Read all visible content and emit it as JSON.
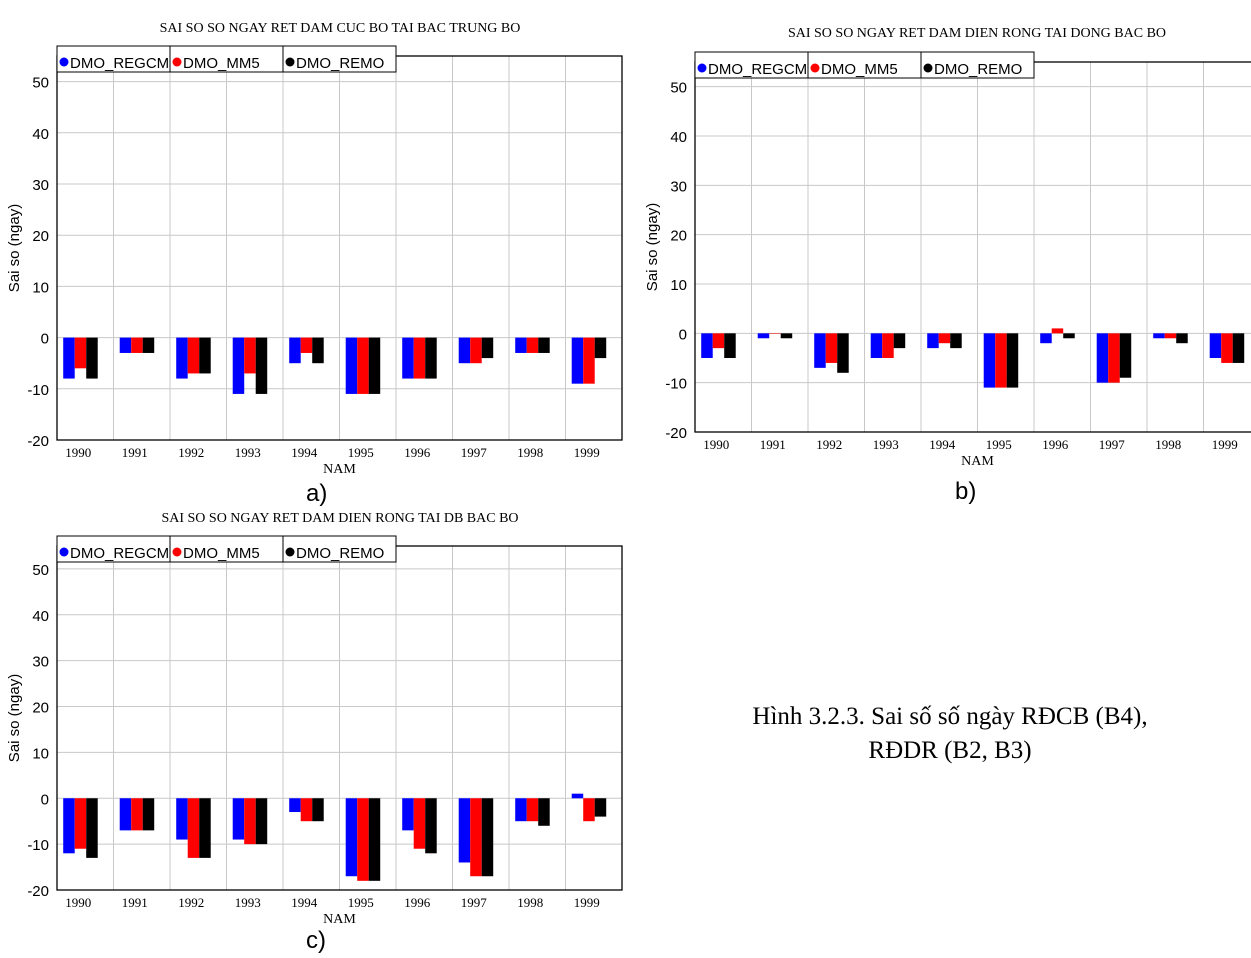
{
  "chart_data": [
    {
      "type": "bar",
      "title": "SAI SO SO NGAY RET DAM CUC BO TAI BAC TRUNG BO",
      "xlabel": "NAM",
      "ylabel": "Sai so  (ngay)",
      "ylim": [
        -20,
        55
      ],
      "yticks": [
        -20,
        -10,
        0,
        10,
        20,
        30,
        40,
        50
      ],
      "grid": true,
      "legend_position": "top-left",
      "categories": [
        "1990",
        "1991",
        "1992",
        "1993",
        "1994",
        "1995",
        "1996",
        "1997",
        "1998",
        "1999"
      ],
      "series": [
        {
          "name": "DMO_REGCM",
          "color": "#0000ff",
          "values": [
            -8,
            -3,
            -8,
            -11,
            -5,
            -11,
            -8,
            -5,
            -3,
            -9
          ]
        },
        {
          "name": "DMO_MM5",
          "color": "#ff0000",
          "values": [
            -6,
            -3,
            -7,
            -7,
            -3,
            -11,
            -8,
            -5,
            -3,
            -9
          ]
        },
        {
          "name": "DMO_REMO",
          "color": "#000000",
          "values": [
            -8,
            -3,
            -7,
            -11,
            -5,
            -11,
            -8,
            -4,
            -3,
            -4
          ]
        }
      ],
      "panel_label": "a)"
    },
    {
      "type": "bar",
      "title": "SAI SO SO NGAY RET DAM DIEN RONG TAI DONG BAC BO",
      "xlabel": "NAM",
      "ylabel": "Sai so  (ngay)",
      "ylim": [
        -20,
        55
      ],
      "yticks": [
        -20,
        -10,
        0,
        10,
        20,
        30,
        40,
        50
      ],
      "grid": true,
      "legend_position": "top-left",
      "categories": [
        "1990",
        "1991",
        "1992",
        "1993",
        "1994",
        "1995",
        "1996",
        "1997",
        "1998",
        "1999"
      ],
      "series": [
        {
          "name": "DMO_REGCM",
          "color": "#0000ff",
          "values": [
            -5,
            -1,
            -7,
            -5,
            -3,
            -11,
            -2,
            -10,
            -1,
            -5
          ]
        },
        {
          "name": "DMO_MM5",
          "color": "#ff0000",
          "values": [
            -3,
            0,
            -6,
            -5,
            -2,
            -11,
            1,
            -10,
            -1,
            -6
          ]
        },
        {
          "name": "DMO_REMO",
          "color": "#000000",
          "values": [
            -5,
            -1,
            -8,
            -3,
            -3,
            -11,
            -1,
            -9,
            -2,
            -6
          ]
        }
      ],
      "panel_label": "b)"
    },
    {
      "type": "bar",
      "title": "SAI SO SO NGAY RET DAM DIEN RONG TAI DB BAC BO",
      "xlabel": "NAM",
      "ylabel": "Sai so  (ngay)",
      "ylim": [
        -20,
        55
      ],
      "yticks": [
        -20,
        -10,
        0,
        10,
        20,
        30,
        40,
        50
      ],
      "grid": true,
      "legend_position": "top-left",
      "categories": [
        "1990",
        "1991",
        "1992",
        "1993",
        "1994",
        "1995",
        "1996",
        "1997",
        "1998",
        "1999"
      ],
      "series": [
        {
          "name": "DMO_REGCM",
          "color": "#0000ff",
          "values": [
            -12,
            -7,
            -9,
            -9,
            -3,
            -17,
            -7,
            -14,
            -5,
            1
          ]
        },
        {
          "name": "DMO_MM5",
          "color": "#ff0000",
          "values": [
            -11,
            -7,
            -13,
            -10,
            -5,
            -18,
            -11,
            -17,
            -5,
            -5
          ]
        },
        {
          "name": "DMO_REMO",
          "color": "#000000",
          "values": [
            -13,
            -7,
            -13,
            -10,
            -5,
            -18,
            -12,
            -17,
            -6,
            -4
          ]
        }
      ],
      "panel_label": "c)"
    }
  ],
  "caption": {
    "line1": "Hình 3.2.3. Sai số số ngày RĐCB (B4),",
    "line2": "RĐDR (B2, B3)"
  }
}
